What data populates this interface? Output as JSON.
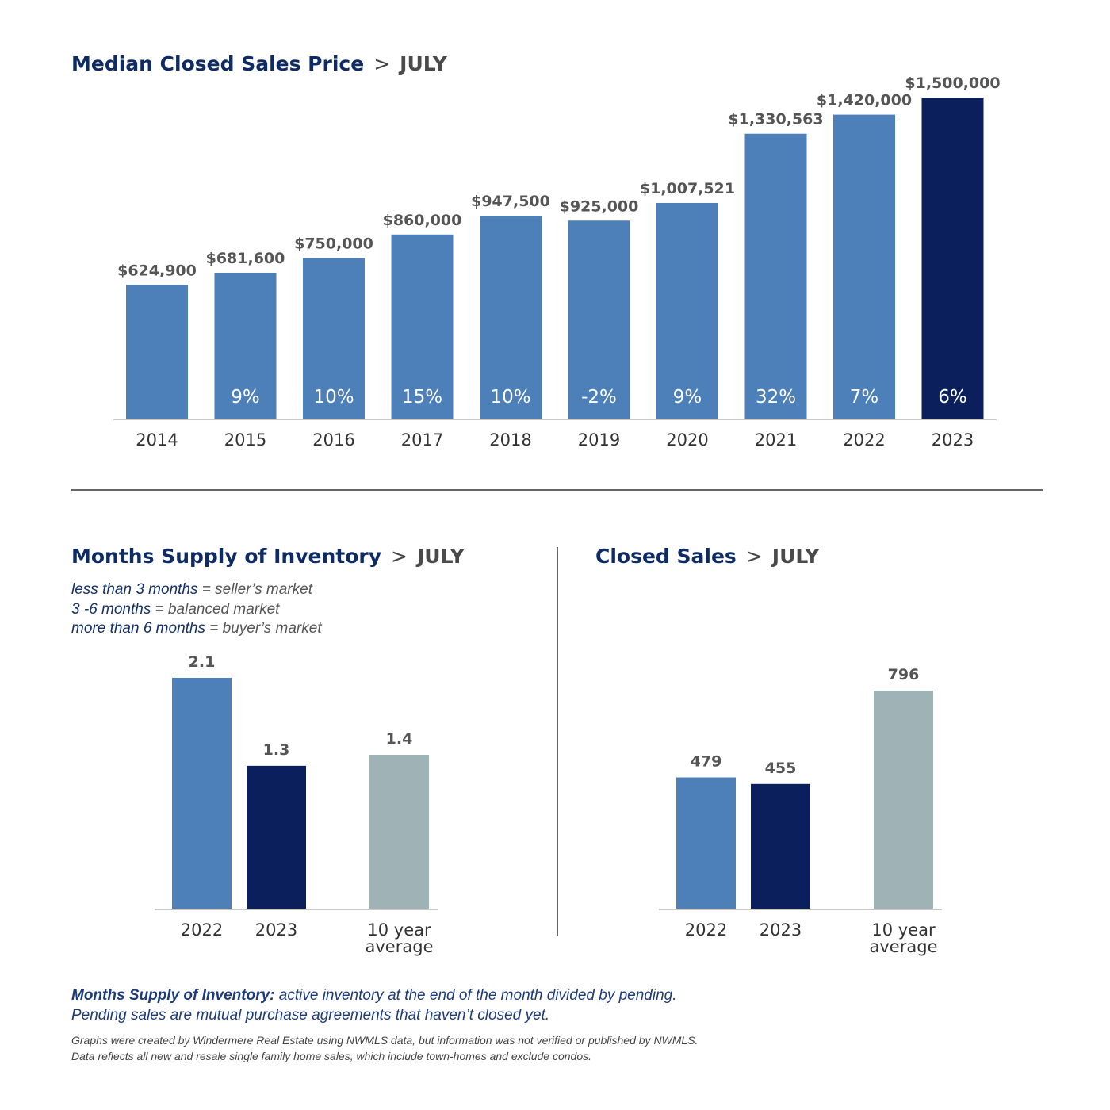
{
  "colors": {
    "lightBlue": "#4d7fb8",
    "darkNavy": "#0a1f5c",
    "gray": "#9fb3b6",
    "titleNavy": "#0f2b63"
  },
  "headers": {
    "price": {
      "main": "Median Closed Sales Price",
      "sep": ">",
      "month": "JULY"
    },
    "supply": {
      "main": "Months Supply of Inventory",
      "sep": ">",
      "month": "JULY"
    },
    "sales": {
      "main": "Closed Sales",
      "sep": ">",
      "month": "JULY"
    }
  },
  "legend": [
    {
      "bold": "less than 3 months",
      "rest": " = seller’s market"
    },
    {
      "bold": "3 -6 months",
      "rest": " = balanced market"
    },
    {
      "bold": "more than 6 months",
      "rest": " = buyer’s market"
    }
  ],
  "note": {
    "bold": "Months Supply of Inventory:",
    "line1": " active inventory at the end of the month divided by pending.",
    "line2": "Pending sales are mutual purchase agreements that haven’t closed yet."
  },
  "footnote": {
    "line1": "Graphs were created by Windermere Real Estate using NWMLS data, but information was not verified or published by NWMLS.",
    "line2": "Data reflects all new and resale single family home sales, which include town-homes and exclude condos."
  },
  "chart_data": [
    {
      "type": "bar",
      "categories": [
        "2014",
        "2015",
        "2016",
        "2017",
        "2018",
        "2019",
        "2020",
        "2021",
        "2022",
        "2023"
      ],
      "values": [
        624900,
        681600,
        750000,
        860000,
        947500,
        925000,
        1007521,
        1330563,
        1420000,
        1500000
      ],
      "value_labels": [
        "$624,900",
        "$681,600",
        "$750,000",
        "$860,000",
        "$947,500",
        "$925,000",
        "$1,007,521",
        "$1,330,563",
        "$1,420,000",
        "$1,500,000"
      ],
      "pct_change_labels": [
        "",
        "9%",
        "10%",
        "15%",
        "10%",
        "-2%",
        "9%",
        "32%",
        "7%",
        "6%"
      ],
      "highlight": "2023",
      "ylim": [
        0,
        1500000
      ]
    },
    {
      "type": "bar",
      "categories": [
        "2022",
        "2023",
        "10 year average"
      ],
      "values": [
        2.1,
        1.3,
        1.4
      ],
      "value_labels": [
        "2.1",
        "1.3",
        "1.4"
      ],
      "ylim": [
        0,
        2.1
      ]
    },
    {
      "type": "bar",
      "categories": [
        "2022",
        "2023",
        "10 year average"
      ],
      "values": [
        479,
        455,
        796
      ],
      "value_labels": [
        "479",
        "455",
        "796"
      ],
      "ylim": [
        0,
        796
      ]
    }
  ]
}
